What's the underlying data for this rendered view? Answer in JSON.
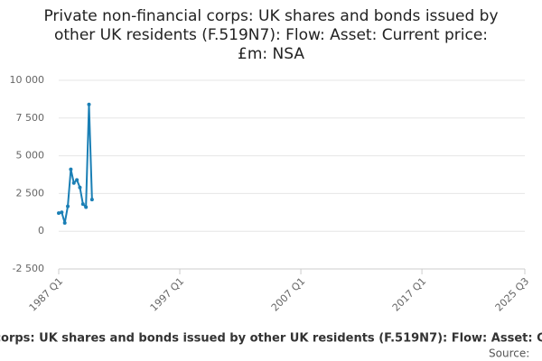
{
  "chart_data": {
    "type": "line",
    "title": "Private non-financial corps: UK shares and bonds issued by other UK residents (F.519N7): Flow: Asset: Current price: £m: NSA",
    "title_lines": [
      "Private non-financial corps: UK shares and bonds issued by",
      "other UK residents (F.519N7): Flow: Asset: Current price:",
      "£m: NSA"
    ],
    "source": "Source:",
    "x": [
      "1987 Q1",
      "1987 Q2",
      "1987 Q3",
      "1987 Q4",
      "1988 Q1",
      "1988 Q2",
      "1988 Q3",
      "1988 Q4",
      "1989 Q1",
      "1989 Q2",
      "1989 Q3",
      "1989 Q4"
    ],
    "series": [
      {
        "name": "F.519N7",
        "color": "#1a7fb5",
        "values": [
          1200,
          1250,
          550,
          1650,
          4100,
          3200,
          3400,
          2900,
          1800,
          1600,
          8400,
          2100
        ]
      }
    ],
    "xlim": [
      "1987 Q1",
      "2025 Q3"
    ],
    "xticks": [
      "1987 Q1",
      "1997 Q1",
      "2007 Q1",
      "2017 Q1",
      "2025 Q3"
    ],
    "ylim": [
      -2500,
      10000
    ],
    "yticks": [
      {
        "value": -2500,
        "label": "-2 500"
      },
      0,
      {
        "value": 2500,
        "label": "2 500"
      },
      {
        "value": 5000,
        "label": "5 000"
      },
      {
        "value": 7500,
        "label": "7 500"
      },
      {
        "value": 10000,
        "label": "10 000"
      }
    ],
    "grid": true
  }
}
